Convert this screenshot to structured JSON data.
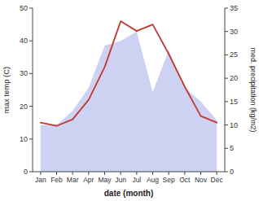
{
  "chart_data": {
    "type": "line",
    "categories": [
      "Jan",
      "Feb",
      "Mar",
      "Apr",
      "May",
      "Jun",
      "Jul",
      "Aug",
      "Sep",
      "Oct",
      "Nov",
      "Dec"
    ],
    "xlabel": "date (month)",
    "ylabel": "max temp (C)",
    "y2label": "med. precipitation (kg/m2)",
    "series": [
      {
        "type": "area",
        "axis": "y2",
        "color": "#c5caf0",
        "values": [
          10,
          10,
          13,
          18,
          27,
          28,
          30,
          17,
          26,
          18,
          15,
          11
        ]
      },
      {
        "type": "line",
        "color": "#c0392b",
        "values": [
          15,
          14,
          16,
          22,
          32,
          46,
          43,
          45,
          36,
          26,
          17,
          15
        ]
      }
    ],
    "ylim": [
      0,
      50
    ],
    "yticks": [
      0,
      10,
      20,
      30,
      40,
      50
    ],
    "y2lim": [
      0,
      35
    ],
    "y2ticks": [
      0,
      5,
      10,
      15,
      20,
      25,
      30,
      35
    ]
  }
}
